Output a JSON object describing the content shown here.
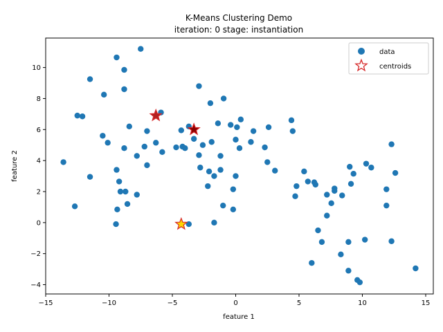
{
  "chart_data": {
    "type": "scatter",
    "title_line1": "K-Means Clustering Demo",
    "title_line2": "iteration: 0 stage: instantiation",
    "xlabel": "feature 1",
    "ylabel": "feature 2",
    "xlim": [
      -15,
      15.6
    ],
    "ylim": [
      -4.6,
      11.9
    ],
    "xticks": [
      -15,
      -10,
      -5,
      0,
      5,
      10,
      15
    ],
    "yticks": [
      -4,
      -2,
      0,
      2,
      4,
      6,
      8,
      10
    ],
    "grid": false,
    "legend": {
      "placement": "top-right",
      "entries": [
        {
          "label": "data",
          "marker": "circle",
          "color": "#1f77b4"
        },
        {
          "label": "centroids",
          "marker": "star",
          "color": "#d62728"
        }
      ]
    },
    "series": [
      {
        "name": "data",
        "color": "#1f77b4",
        "points": [
          [
            -13.6,
            3.9
          ],
          [
            -12.7,
            1.05
          ],
          [
            -12.5,
            6.9
          ],
          [
            -12.1,
            6.85
          ],
          [
            -11.5,
            9.25
          ],
          [
            -11.5,
            2.95
          ],
          [
            -10.4,
            8.25
          ],
          [
            -10.5,
            5.6
          ],
          [
            -10.1,
            5.15
          ],
          [
            -9.4,
            10.65
          ],
          [
            -9.4,
            3.4
          ],
          [
            -9.2,
            2.65
          ],
          [
            -9.1,
            2.0
          ],
          [
            -8.7,
            2.0
          ],
          [
            -8.8,
            9.85
          ],
          [
            -8.8,
            8.6
          ],
          [
            -8.8,
            4.8
          ],
          [
            -8.4,
            6.2
          ],
          [
            -8.55,
            1.2
          ],
          [
            -9.35,
            0.85
          ],
          [
            -9.45,
            -0.1
          ],
          [
            -7.8,
            4.3
          ],
          [
            -7.8,
            1.8
          ],
          [
            -7.5,
            11.2
          ],
          [
            -7.2,
            4.9
          ],
          [
            -7.0,
            5.9
          ],
          [
            -7.0,
            3.7
          ],
          [
            -6.3,
            5.15
          ],
          [
            -6.3,
            6.9
          ],
          [
            -5.9,
            7.1
          ],
          [
            -5.8,
            4.55
          ],
          [
            -4.7,
            4.85
          ],
          [
            -4.3,
            5.95
          ],
          [
            -4.2,
            4.9
          ],
          [
            -4.0,
            4.8
          ],
          [
            -3.7,
            -0.1
          ],
          [
            -3.7,
            6.2
          ],
          [
            -3.3,
            5.4
          ],
          [
            -3.3,
            6.0
          ],
          [
            -2.9,
            8.8
          ],
          [
            -2.9,
            4.35
          ],
          [
            -2.8,
            3.55
          ],
          [
            -2.6,
            5.0
          ],
          [
            -2.2,
            2.35
          ],
          [
            -2.1,
            3.3
          ],
          [
            -2.0,
            7.7
          ],
          [
            -1.9,
            5.2
          ],
          [
            -1.7,
            3.0
          ],
          [
            -1.7,
            0.0
          ],
          [
            -1.4,
            6.4
          ],
          [
            -1.2,
            4.3
          ],
          [
            -1.2,
            3.4
          ],
          [
            -1.0,
            1.1
          ],
          [
            -0.95,
            8.0
          ],
          [
            -0.4,
            6.3
          ],
          [
            -0.2,
            2.15
          ],
          [
            -0.2,
            0.85
          ],
          [
            0.0,
            3.0
          ],
          [
            0.0,
            5.35
          ],
          [
            0.1,
            6.15
          ],
          [
            0.3,
            4.8
          ],
          [
            0.4,
            6.65
          ],
          [
            1.2,
            5.2
          ],
          [
            1.4,
            5.9
          ],
          [
            2.3,
            4.85
          ],
          [
            2.5,
            3.9
          ],
          [
            2.6,
            6.15
          ],
          [
            3.1,
            3.35
          ],
          [
            4.4,
            6.6
          ],
          [
            4.5,
            5.9
          ],
          [
            4.7,
            1.7
          ],
          [
            4.8,
            2.35
          ],
          [
            5.4,
            3.3
          ],
          [
            5.7,
            2.65
          ],
          [
            6.0,
            -2.6
          ],
          [
            6.2,
            2.6
          ],
          [
            6.3,
            2.45
          ],
          [
            6.5,
            -0.5
          ],
          [
            6.8,
            -1.25
          ],
          [
            7.2,
            1.8
          ],
          [
            7.2,
            0.45
          ],
          [
            7.55,
            1.25
          ],
          [
            7.8,
            2.2
          ],
          [
            7.8,
            2.05
          ],
          [
            8.3,
            -2.05
          ],
          [
            8.4,
            1.75
          ],
          [
            8.9,
            -3.1
          ],
          [
            8.9,
            -1.25
          ],
          [
            9.0,
            3.6
          ],
          [
            9.1,
            2.5
          ],
          [
            9.3,
            3.15
          ],
          [
            9.6,
            -3.7
          ],
          [
            9.8,
            -3.85
          ],
          [
            10.2,
            -1.1
          ],
          [
            10.3,
            3.8
          ],
          [
            10.7,
            3.55
          ],
          [
            11.9,
            2.15
          ],
          [
            11.9,
            1.1
          ],
          [
            12.3,
            5.05
          ],
          [
            12.3,
            -1.2
          ],
          [
            12.6,
            3.2
          ],
          [
            14.2,
            -2.95
          ]
        ]
      },
      {
        "name": "centroids",
        "marker": "star",
        "points": [
          {
            "x": -6.3,
            "y": 6.9,
            "fill": "#b22222",
            "edge": "#d62728"
          },
          {
            "x": -3.3,
            "y": 6.0,
            "fill": "#8b0000",
            "edge": "#d62728"
          },
          {
            "x": -4.3,
            "y": -0.1,
            "fill": "#ffd700",
            "edge": "#d62728"
          }
        ]
      }
    ]
  }
}
